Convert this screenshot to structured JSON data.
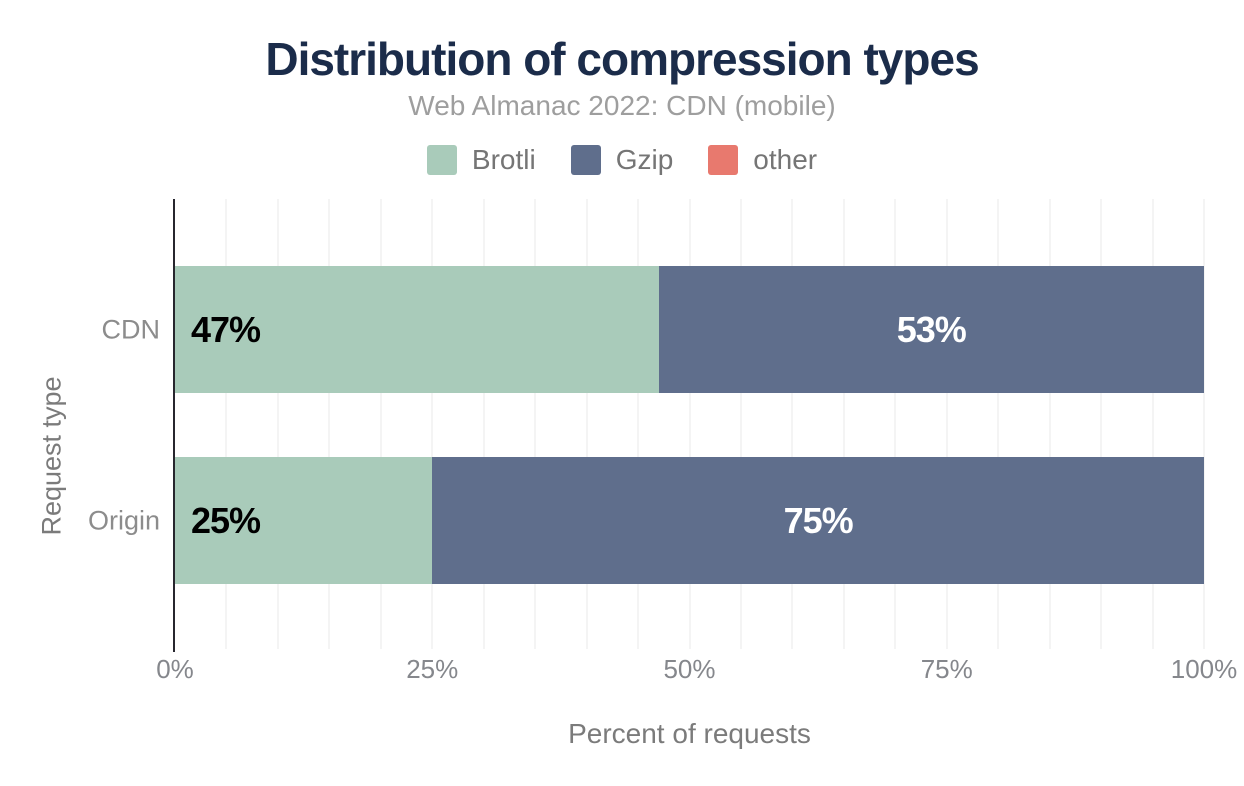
{
  "colors": {
    "background": "#ffffff",
    "title": "#1b2c4a",
    "subtitle": "#9e9e9e",
    "legend_text": "#757575",
    "axis_title": "#7b7b7b",
    "category_label": "#8c8c8c",
    "tick_label": "#85878c",
    "axis_line": "#27262e",
    "grid": "#f4f4f4",
    "brotli": "#a9cbba",
    "gzip": "#5f6e8c",
    "other": "#e8796e"
  },
  "chart_data": {
    "type": "bar",
    "orientation": "horizontal",
    "stacked": true,
    "title": "Distribution of compression types",
    "subtitle": "Web Almanac 2022: CDN (mobile)",
    "xlabel": "Percent of requests",
    "ylabel": "Request type",
    "xlim": [
      0,
      100
    ],
    "grid": {
      "show": true,
      "step": 5
    },
    "legend": {
      "position": "top",
      "items": [
        {
          "name": "Brotli",
          "color": "#a9cbba"
        },
        {
          "name": "Gzip",
          "color": "#5f6e8c"
        },
        {
          "name": "other",
          "color": "#e8796e"
        }
      ]
    },
    "categories": [
      "CDN",
      "Origin"
    ],
    "series": [
      {
        "name": "Brotli",
        "color": "#a9cbba",
        "values": [
          47,
          25
        ],
        "labels": [
          "47%",
          "25%"
        ],
        "label_color": "#000000",
        "label_align": "start"
      },
      {
        "name": "Gzip",
        "color": "#5f6e8c",
        "values": [
          53,
          75
        ],
        "labels": [
          "53%",
          "75%"
        ],
        "label_color": "#ffffff",
        "label_align": "center"
      },
      {
        "name": "other",
        "color": "#e8796e",
        "values": [
          0,
          0
        ],
        "labels": [
          "",
          ""
        ],
        "label_color": "#ffffff",
        "label_align": "center"
      }
    ],
    "xticks": [
      {
        "value": 0,
        "label": "0%"
      },
      {
        "value": 25,
        "label": "25%"
      },
      {
        "value": 50,
        "label": "50%"
      },
      {
        "value": 75,
        "label": "75%"
      },
      {
        "value": 100,
        "label": "100%"
      }
    ]
  }
}
